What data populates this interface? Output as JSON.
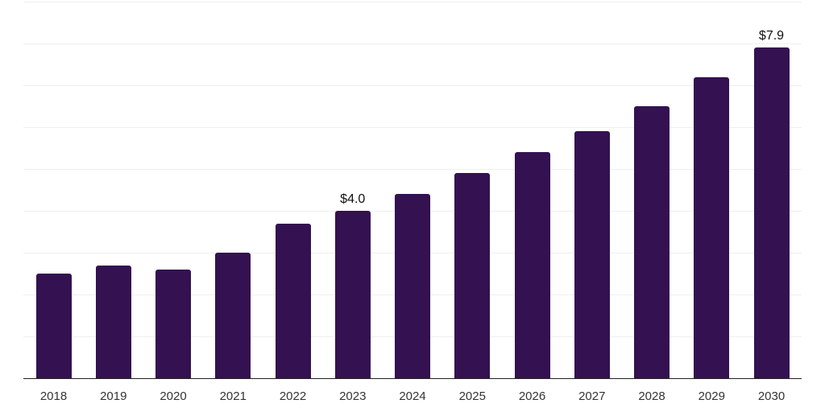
{
  "chart_data": {
    "type": "bar",
    "title": "",
    "xlabel": "",
    "ylabel": "",
    "categories": [
      "2018",
      "2019",
      "2020",
      "2021",
      "2022",
      "2023",
      "2024",
      "2025",
      "2026",
      "2027",
      "2028",
      "2029",
      "2030"
    ],
    "values": [
      2.5,
      2.7,
      2.6,
      3.0,
      3.7,
      4.0,
      4.4,
      4.9,
      5.4,
      5.9,
      6.5,
      7.2,
      7.9
    ],
    "bar_labels": [
      "",
      "",
      "",
      "",
      "",
      "$4.0",
      "",
      "",
      "",
      "",
      "",
      "",
      "$7.9"
    ],
    "ylim": [
      0,
      9
    ],
    "gridline_interval": 1,
    "grid": "horizontal",
    "legend_position": "none",
    "colors": {
      "bar": "#341150",
      "gridline": "#efefef",
      "axis_line": "#222222",
      "tick_label": "#333333",
      "data_label": "#111111",
      "background": "#ffffff"
    }
  }
}
